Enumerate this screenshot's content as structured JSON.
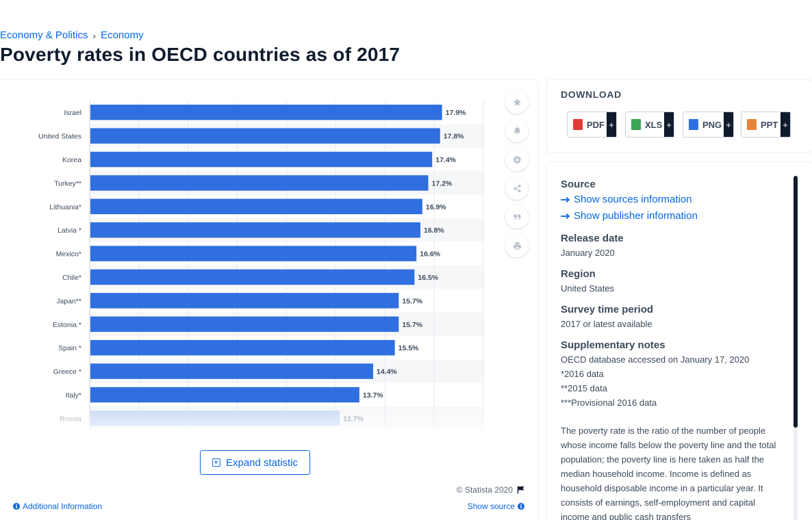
{
  "breadcrumb": {
    "item1": "Economy & Politics",
    "separator": "›",
    "item2": "Economy"
  },
  "page_title": "Poverty rates in OECD countries as of 2017",
  "chart_data": {
    "type": "bar",
    "orientation": "horizontal",
    "categories": [
      "Israel",
      "United States",
      "Korea",
      "Turkey**",
      "Lithuania*",
      "Latvia *",
      "Mexico*",
      "Chile*",
      "Japan**",
      "Estonia *",
      "Spain *",
      "Greece *",
      "Italy*",
      "Russia"
    ],
    "values": [
      17.9,
      17.8,
      17.4,
      17.2,
      16.9,
      16.8,
      16.6,
      16.5,
      15.7,
      15.7,
      15.5,
      14.4,
      13.7,
      12.7
    ],
    "value_labels": [
      "17.9%",
      "17.8%",
      "17.4%",
      "17.2%",
      "16.9%",
      "16.8%",
      "16.6%",
      "16.5%",
      "15.7%",
      "15.7%",
      "15.5%",
      "14.4%",
      "13.7%",
      "12.7%"
    ],
    "title": "",
    "xlabel": "",
    "ylabel": "",
    "xlim": [
      0,
      20
    ],
    "bar_color": "#2f6fdf",
    "grid": true,
    "legend": "none",
    "truncated_after_row": 13
  },
  "toolbar": {
    "icons": [
      "star-icon",
      "bell-icon",
      "gear-icon",
      "share-icon",
      "quote-icon",
      "print-icon"
    ]
  },
  "expand_button": {
    "label": "Expand statistic",
    "icon": "plus-square-icon"
  },
  "footer": {
    "copyright": "© Statista 2020",
    "additional_info": "Additional Information",
    "show_source": "Show source"
  },
  "download": {
    "title": "DOWNLOAD",
    "buttons": [
      {
        "label": "PDF",
        "plus": "+",
        "icon": "pdf-file-icon",
        "color": "#e23a3a"
      },
      {
        "label": "XLS",
        "plus": "+",
        "icon": "xls-file-icon",
        "color": "#3aa655"
      },
      {
        "label": "PNG",
        "plus": "+",
        "icon": "png-file-icon",
        "color": "#2f6fdf"
      },
      {
        "label": "PPT",
        "plus": "+",
        "icon": "ppt-file-icon",
        "color": "#e8833a"
      }
    ]
  },
  "source": {
    "source_heading": "Source",
    "sources_link": "Show sources information",
    "publisher_link": "Show publisher information",
    "release_heading": "Release date",
    "release_value": "January 2020",
    "region_heading": "Region",
    "region_value": "United States",
    "survey_heading": "Survey time period",
    "survey_value": "2017 or latest available",
    "notes_heading": "Supplementary notes",
    "notes_lines": [
      "OECD database accessed on January 17, 2020",
      "*2016 data",
      "**2015 data",
      "***Provisional 2016 data"
    ],
    "description": "The poverty rate is the ratio of the number of people whose income falls below the poverty line and the total population; the poverty line is here taken as half the median household income. Income is defined as household disposable income in a particular year. It consists of earnings, self-employment and capital income and public cash transfers"
  },
  "colors": {
    "accent": "#0666e5",
    "dark": "#0f1b2d",
    "bar": "#2f6fdf"
  }
}
